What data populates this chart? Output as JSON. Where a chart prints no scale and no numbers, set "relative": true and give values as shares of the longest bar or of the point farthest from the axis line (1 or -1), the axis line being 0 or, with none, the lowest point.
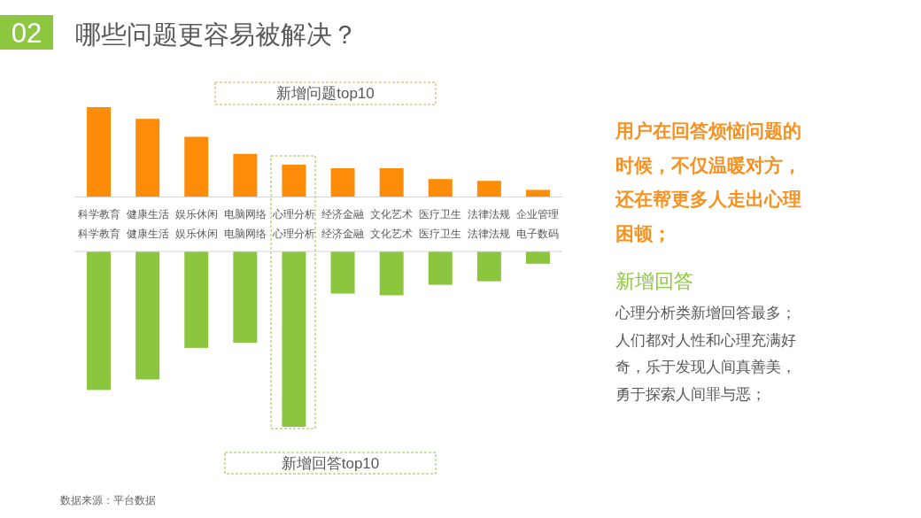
{
  "chart_data": [
    {
      "type": "other",
      "title": "哪些问题更容易被解决？",
      "annotations": [
        "02",
        "数据来源：平台数据"
      ]
    },
    {
      "type": "bar",
      "title": "新增问题top10",
      "categories": [
        "科学教育",
        "健康生活",
        "娱乐休闲",
        "电脑网络",
        "心理分析",
        "经济金融",
        "文化艺术",
        "医疗卫生",
        "法律法规",
        "企业管理"
      ],
      "values": [
        1,
        0.87,
        0.67,
        0.48,
        0.36,
        0.32,
        0.32,
        0.2,
        0.18,
        0.08
      ],
      "color": "#fd8c08",
      "relative": true
    },
    {
      "type": "bar",
      "title": "新增回答top10",
      "categories": [
        "科学教育",
        "健康生活",
        "娱乐休闲",
        "电脑网络",
        "心理分析",
        "经济金融",
        "文化艺术",
        "医疗卫生",
        "法律法规",
        "电子数码"
      ],
      "values": [
        -0.79,
        -0.73,
        -0.55,
        -0.52,
        -1,
        -0.24,
        -0.25,
        -0.19,
        -0.17,
        -0.07
      ],
      "color": "#8cc63f",
      "relative": true
    },
    {
      "type": "other",
      "annotations": [
        "用户在回答烦恼问题的时候，不仅温暖对方，还在帮更多人走出心理困顿；",
        "新增回答",
        "心理分析类新增回答最多；人们都对人性和心理充满好奇，乐于发现人间真善美，勇于探索人间罪与恶；"
      ]
    }
  ]
}
